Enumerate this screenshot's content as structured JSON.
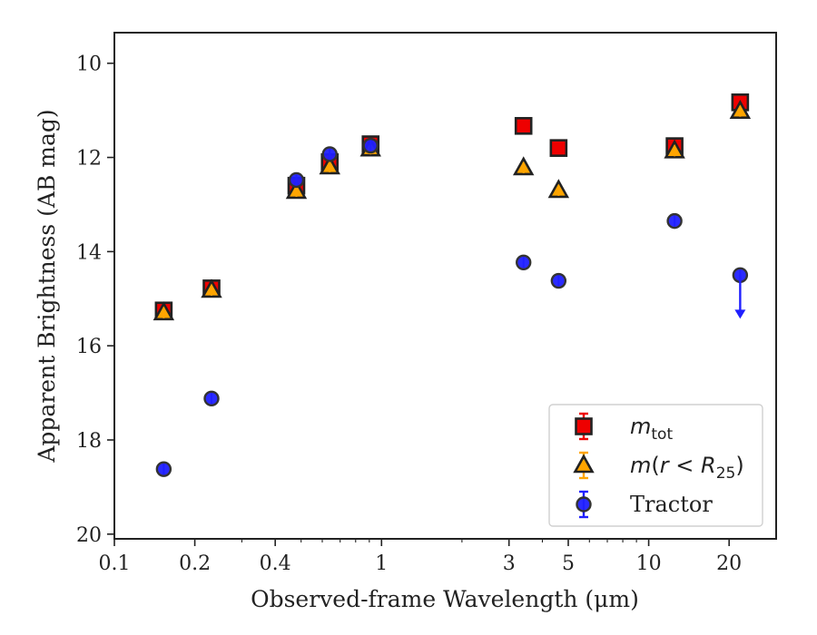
{
  "chart_data": {
    "type": "scatter",
    "title": "",
    "xlabel": "Observed-frame Wavelength (μm)",
    "ylabel": "Apparent Brightness (AB mag)",
    "xscale": "log",
    "xlim": [
      0.1,
      30
    ],
    "ylim": [
      20.1,
      9.35
    ],
    "y_inverted": true,
    "x_ticks": [
      0.1,
      0.2,
      0.4,
      1,
      3,
      5,
      10,
      20
    ],
    "x_tick_labels": [
      "0.1",
      "0.2",
      "0.4",
      "1",
      "3",
      "5",
      "10",
      "20"
    ],
    "y_ticks": [
      10,
      12,
      14,
      16,
      18,
      20
    ],
    "y_tick_labels": [
      "10",
      "12",
      "14",
      "16",
      "18",
      "20"
    ],
    "grid": false,
    "legend_position": "lower-right",
    "series": [
      {
        "name": "m_tot",
        "legend_html": "<tspan font-style='italic'>m</tspan><tspan font-size='17' dy='6'>tot</tspan>",
        "marker": "square",
        "color": "#ee0000",
        "x": [
          0.153,
          0.231,
          0.48,
          0.64,
          0.91,
          3.4,
          4.6,
          12.5,
          22.0
        ],
        "y": [
          15.25,
          14.78,
          12.6,
          12.1,
          11.72,
          11.33,
          11.8,
          11.76,
          10.83
        ]
      },
      {
        "name": "m(r < R25)",
        "legend_html": "<tspan font-style='italic'>m</tspan>(<tspan font-style='italic'>r</tspan> &lt; <tspan font-style='italic'>R</tspan><tspan font-size='17' dy='6'>25</tspan><tspan dy='-6'>)</tspan>",
        "marker": "triangle",
        "color": "#ffa500",
        "x": [
          0.153,
          0.231,
          0.48,
          0.64,
          0.91,
          3.4,
          4.6,
          12.5,
          22.0
        ],
        "y": [
          15.3,
          14.82,
          12.72,
          12.2,
          11.82,
          12.22,
          12.7,
          11.86,
          11.02
        ]
      },
      {
        "name": "Tractor",
        "marker": "circle",
        "color": "#2020ff",
        "x": [
          0.153,
          0.231,
          0.48,
          0.64,
          0.91,
          3.4,
          4.6,
          12.5,
          22.0
        ],
        "y": [
          18.62,
          17.12,
          12.48,
          11.93,
          11.75,
          14.23,
          14.62,
          13.35,
          14.5
        ],
        "upper_limit": [
          false,
          false,
          false,
          false,
          false,
          false,
          false,
          false,
          true
        ]
      }
    ]
  }
}
